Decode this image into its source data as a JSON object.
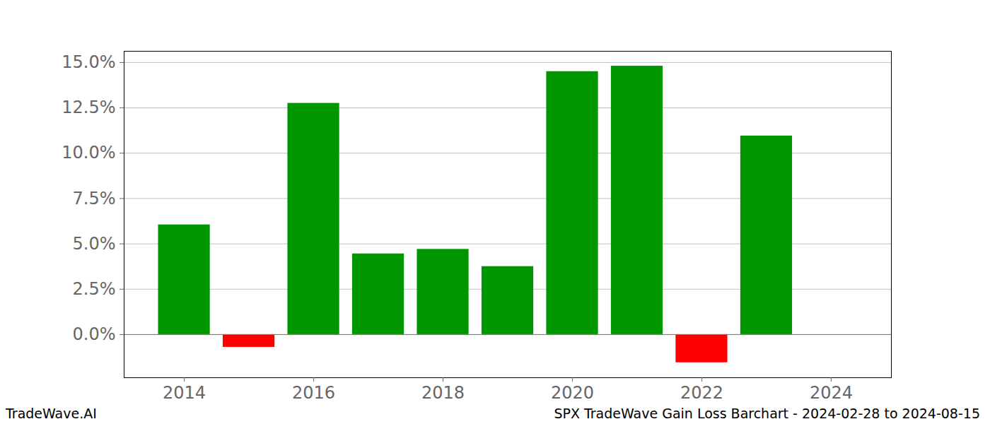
{
  "chart_data": {
    "type": "bar",
    "caption": "SPX TradeWave Gain Loss Barchart - 2024-02-28 to 2024-08-15",
    "credit": "TradeWave.AI",
    "x": [
      2014,
      2015,
      2016,
      2017,
      2018,
      2019,
      2020,
      2021,
      2022,
      2023
    ],
    "values": [
      6.05,
      -0.7,
      12.75,
      4.45,
      4.7,
      3.75,
      14.5,
      14.8,
      -1.55,
      10.95
    ],
    "colors": [
      "#009600",
      "#ff0000",
      "#009600",
      "#009600",
      "#009600",
      "#009600",
      "#009600",
      "#009600",
      "#ff0000",
      "#009600"
    ],
    "xlim": [
      2013.07,
      2024.93
    ],
    "xticks": [
      2014,
      2016,
      2018,
      2020,
      2022,
      2024
    ],
    "ylim": [
      -2.38,
      15.62
    ],
    "yticks": [
      {
        "value": 0,
        "label": "0.0%"
      },
      {
        "value": 2.5,
        "label": "2.5%"
      },
      {
        "value": 5,
        "label": "5.0%"
      },
      {
        "value": 7.5,
        "label": "7.5%"
      },
      {
        "value": 10,
        "label": "10.0%"
      },
      {
        "value": 12.5,
        "label": "12.5%"
      },
      {
        "value": 15,
        "label": "15.0%"
      }
    ],
    "grid": true
  }
}
